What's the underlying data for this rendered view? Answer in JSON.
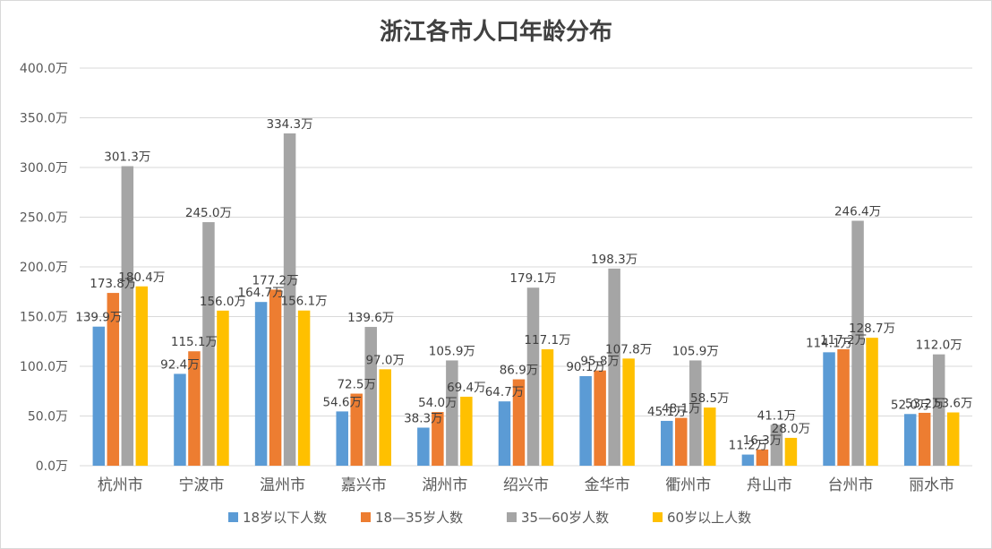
{
  "chart_data": {
    "type": "bar",
    "title": "浙江各市人口年龄分布",
    "categories": [
      "杭州市",
      "宁波市",
      "温州市",
      "嘉兴市",
      "湖州市",
      "绍兴市",
      "金华市",
      "衢州市",
      "舟山市",
      "台州市",
      "丽水市"
    ],
    "series": [
      {
        "name": "18岁以下人数",
        "color": "#5b9bd5",
        "values": [
          139.9,
          92.4,
          164.7,
          54.6,
          38.3,
          64.7,
          90.1,
          45.1,
          11.2,
          114.1,
          52.0
        ]
      },
      {
        "name": "18—35岁人数",
        "color": "#ed7d31",
        "values": [
          173.8,
          115.1,
          177.2,
          72.5,
          54.0,
          86.9,
          95.8,
          48.1,
          16.3,
          117.2,
          53.2
        ]
      },
      {
        "name": "35—60岁人数",
        "color": "#a5a5a5",
        "values": [
          301.3,
          245.0,
          334.3,
          139.6,
          105.9,
          179.1,
          198.3,
          105.9,
          41.1,
          246.4,
          112.0
        ]
      },
      {
        "name": "60岁以上人数",
        "color": "#ffc000",
        "values": [
          180.4,
          156.0,
          156.1,
          97.0,
          69.4,
          117.1,
          107.8,
          58.5,
          28.0,
          128.7,
          53.6
        ]
      }
    ],
    "yticks": [
      "0.0万",
      "50.0万",
      "100.0万",
      "150.0万",
      "200.0万",
      "250.0万",
      "300.0万",
      "350.0万",
      "400.0万"
    ],
    "ylim": [
      0,
      400
    ],
    "value_suffix": "万",
    "grid": true,
    "legend_position": "bottom"
  }
}
